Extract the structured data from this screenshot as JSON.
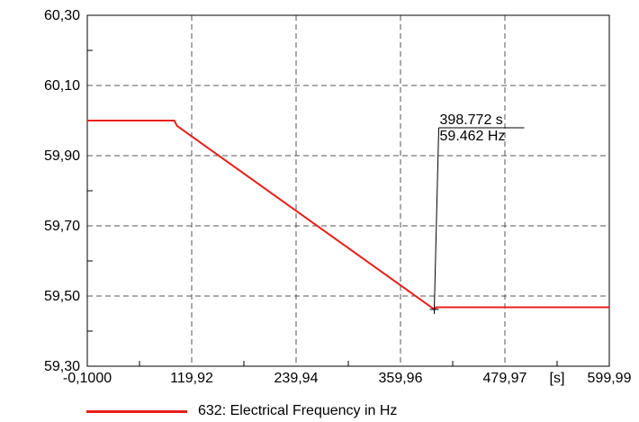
{
  "chart_data": {
    "type": "line",
    "xlim": [
      -0.1,
      599.99
    ],
    "ylim": [
      59.3,
      60.3
    ],
    "x_ticks": [
      -0.1,
      119.92,
      239.94,
      359.96,
      479.97,
      599.99
    ],
    "x_tick_labels": [
      "-0,1000",
      "119,92",
      "239,94",
      "359,96",
      "479,97",
      "599,99"
    ],
    "x_unit_label": "[s]",
    "y_ticks": [
      59.3,
      59.5,
      59.7,
      59.9,
      60.1,
      60.3
    ],
    "y_tick_labels": [
      "59,30",
      "59,50",
      "59,70",
      "59,90",
      "60,10",
      "60,30"
    ],
    "grid": true,
    "series": [
      {
        "name": "632: Electrical Frequency in Hz",
        "color": "#e8201a",
        "x": [
          -0.1,
          100,
          103,
          398.772,
          401,
          599.99
        ],
        "y": [
          60.0,
          60.0,
          59.985,
          59.462,
          59.468,
          59.468
        ]
      }
    ],
    "annotation": {
      "x": 398.772,
      "y": 59.462,
      "line1": "398.772 s",
      "line2": "59.462 Hz"
    },
    "legend_position": "bottom-left"
  }
}
